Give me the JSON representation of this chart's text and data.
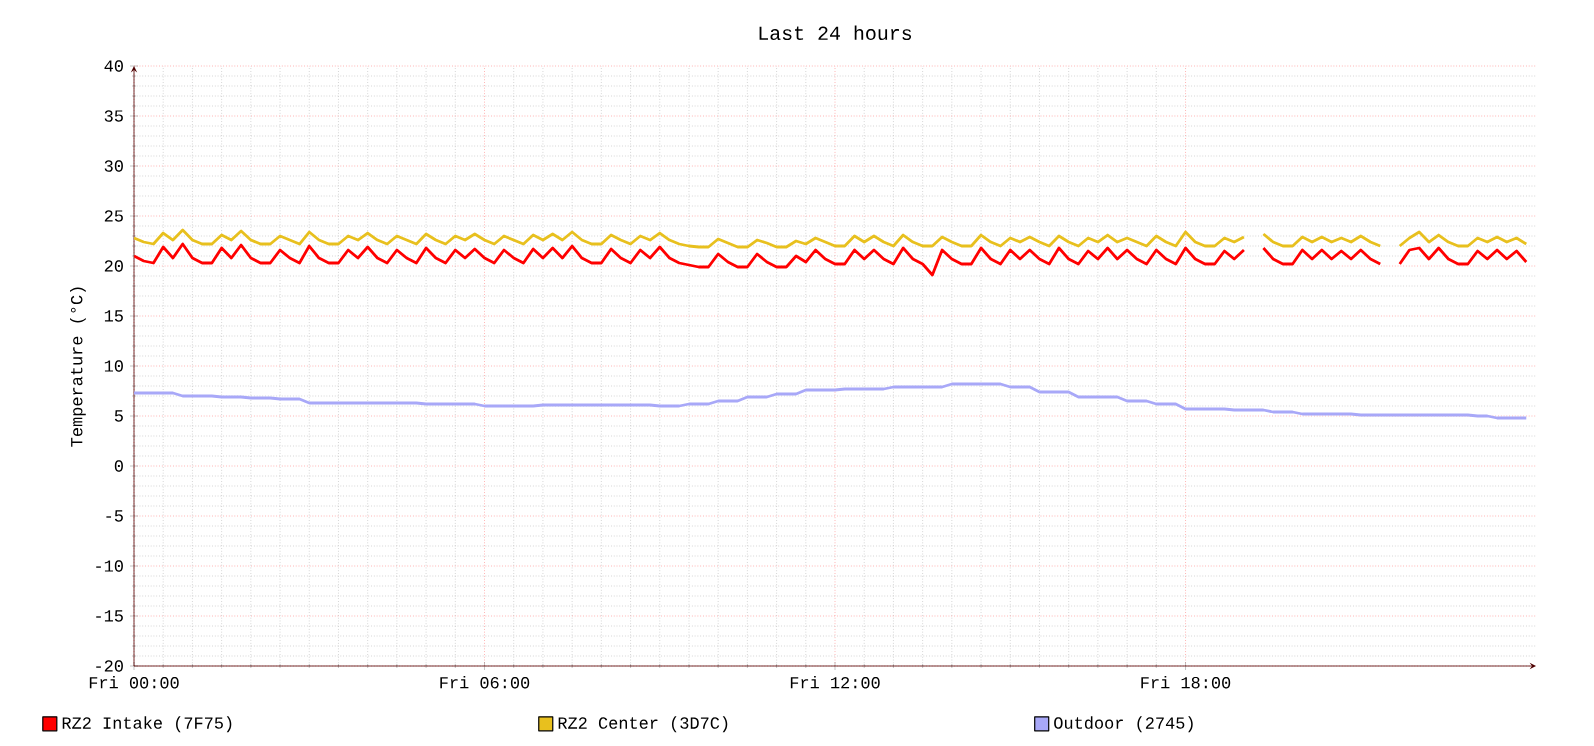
{
  "chart_data": {
    "type": "line",
    "title": "Last 24 hours",
    "ylabel": "Temperature (°C)",
    "categories": [
      "Fri 00:00",
      null,
      null,
      null,
      null,
      null,
      null,
      null,
      null,
      null,
      null,
      null,
      null,
      null,
      null,
      null,
      null,
      null,
      null,
      null,
      null,
      null,
      null,
      null,
      null,
      null,
      null,
      null,
      null,
      null,
      null,
      null,
      null,
      null,
      null,
      null,
      "Fri 06:00",
      null,
      null,
      null,
      null,
      null,
      null,
      null,
      null,
      null,
      null,
      null,
      null,
      null,
      null,
      null,
      null,
      null,
      null,
      null,
      null,
      null,
      null,
      null,
      null,
      null,
      null,
      null,
      null,
      null,
      null,
      null,
      null,
      null,
      null,
      null,
      "Fri 12:00",
      null,
      null,
      null,
      null,
      null,
      null,
      null,
      null,
      null,
      null,
      null,
      null,
      null,
      null,
      null,
      null,
      null,
      null,
      null,
      null,
      null,
      null,
      null,
      null,
      null,
      null,
      null,
      null,
      null,
      null,
      null,
      null,
      null,
      null,
      null,
      "Fri 18:00",
      null,
      null,
      null,
      null,
      null,
      null,
      null,
      null,
      null,
      null,
      null,
      null,
      null,
      null,
      null,
      null,
      null,
      null,
      null,
      null,
      null,
      null,
      null,
      null,
      null,
      null,
      null,
      null,
      null,
      null,
      null,
      null,
      null,
      null,
      null
    ],
    "ylim": [
      -20,
      40
    ],
    "yticks": [
      -20,
      -15,
      -10,
      -5,
      0,
      5,
      10,
      15,
      20,
      25,
      30,
      35,
      40
    ],
    "grid": true,
    "legend": "bottom",
    "series": [
      {
        "name": "RZ2 Intake (7F75)",
        "color": "#ff0000",
        "values": [
          21.0,
          20.5,
          20.3,
          21.9,
          20.8,
          22.2,
          20.8,
          20.3,
          20.3,
          21.8,
          20.8,
          22.1,
          20.8,
          20.3,
          20.3,
          21.6,
          20.8,
          20.3,
          22.0,
          20.8,
          20.3,
          20.3,
          21.6,
          20.8,
          21.9,
          20.8,
          20.3,
          21.6,
          20.8,
          20.3,
          21.8,
          20.8,
          20.3,
          21.6,
          20.8,
          21.7,
          20.8,
          20.3,
          21.6,
          20.8,
          20.3,
          21.7,
          20.8,
          21.8,
          20.8,
          22.0,
          20.8,
          20.3,
          20.3,
          21.7,
          20.8,
          20.3,
          21.6,
          20.8,
          21.9,
          20.8,
          20.3,
          20.1,
          19.9,
          19.9,
          21.2,
          20.4,
          19.9,
          19.9,
          21.2,
          20.4,
          19.9,
          19.9,
          21.0,
          20.4,
          21.6,
          20.7,
          20.2,
          20.2,
          21.6,
          20.7,
          21.6,
          20.7,
          20.2,
          21.8,
          20.7,
          20.2,
          19.1,
          21.6,
          20.7,
          20.2,
          20.2,
          21.8,
          20.7,
          20.2,
          21.6,
          20.7,
          21.6,
          20.7,
          20.2,
          21.8,
          20.7,
          20.2,
          21.5,
          20.7,
          21.8,
          20.7,
          21.6,
          20.7,
          20.2,
          21.6,
          20.7,
          20.2,
          21.8,
          20.7,
          20.2,
          20.2,
          21.5,
          20.7,
          21.6,
          null,
          21.8,
          20.7,
          20.2,
          20.2,
          21.6,
          20.7,
          21.6,
          20.7,
          21.5,
          20.7,
          21.6,
          20.7,
          20.2,
          null,
          20.2,
          21.6,
          21.8,
          20.7,
          21.8,
          20.7,
          20.2,
          20.2,
          21.5,
          20.7,
          21.6,
          20.7,
          21.5,
          20.4
        ]
      },
      {
        "name": "RZ2 Center (3D7C)",
        "color": "#e8c01e",
        "values": [
          22.8,
          22.4,
          22.2,
          23.3,
          22.6,
          23.6,
          22.6,
          22.2,
          22.2,
          23.1,
          22.6,
          23.5,
          22.6,
          22.2,
          22.2,
          23.0,
          22.6,
          22.2,
          23.4,
          22.6,
          22.2,
          22.2,
          23.0,
          22.6,
          23.3,
          22.6,
          22.2,
          23.0,
          22.6,
          22.2,
          23.2,
          22.6,
          22.2,
          23.0,
          22.6,
          23.2,
          22.6,
          22.2,
          23.0,
          22.6,
          22.2,
          23.1,
          22.6,
          23.2,
          22.6,
          23.4,
          22.6,
          22.2,
          22.2,
          23.1,
          22.6,
          22.2,
          23.0,
          22.6,
          23.3,
          22.6,
          22.2,
          22.0,
          21.9,
          21.9,
          22.7,
          22.3,
          21.9,
          21.9,
          22.6,
          22.3,
          21.9,
          21.9,
          22.5,
          22.2,
          22.8,
          22.4,
          22.0,
          22.0,
          23.0,
          22.4,
          23.0,
          22.4,
          22.0,
          23.1,
          22.4,
          22.0,
          22.0,
          22.9,
          22.4,
          22.0,
          22.0,
          23.1,
          22.4,
          22.0,
          22.8,
          22.4,
          22.9,
          22.4,
          22.0,
          23.0,
          22.4,
          22.0,
          22.8,
          22.4,
          23.1,
          22.4,
          22.8,
          22.4,
          22.0,
          23.0,
          22.4,
          22.0,
          23.4,
          22.4,
          22.0,
          22.0,
          22.8,
          22.4,
          22.9,
          null,
          23.2,
          22.4,
          22.0,
          22.0,
          22.9,
          22.4,
          22.9,
          22.4,
          22.8,
          22.4,
          23.0,
          22.4,
          22.0,
          null,
          22.0,
          22.8,
          23.4,
          22.4,
          23.1,
          22.4,
          22.0,
          22.0,
          22.8,
          22.4,
          22.9,
          22.4,
          22.8,
          22.2
        ]
      },
      {
        "name": "Outdoor (2745)",
        "color": "#a8a8f8",
        "values": [
          7.3,
          7.3,
          7.3,
          7.3,
          7.3,
          7.0,
          7.0,
          7.0,
          7.0,
          6.9,
          6.9,
          6.9,
          6.8,
          6.8,
          6.8,
          6.7,
          6.7,
          6.7,
          6.3,
          6.3,
          6.3,
          6.3,
          6.3,
          6.3,
          6.3,
          6.3,
          6.3,
          6.3,
          6.3,
          6.3,
          6.2,
          6.2,
          6.2,
          6.2,
          6.2,
          6.2,
          6.0,
          6.0,
          6.0,
          6.0,
          6.0,
          6.0,
          6.1,
          6.1,
          6.1,
          6.1,
          6.1,
          6.1,
          6.1,
          6.1,
          6.1,
          6.1,
          6.1,
          6.1,
          6.0,
          6.0,
          6.0,
          6.2,
          6.2,
          6.2,
          6.5,
          6.5,
          6.5,
          6.9,
          6.9,
          6.9,
          7.2,
          7.2,
          7.2,
          7.6,
          7.6,
          7.6,
          7.6,
          7.7,
          7.7,
          7.7,
          7.7,
          7.7,
          7.9,
          7.9,
          7.9,
          7.9,
          7.9,
          7.9,
          8.2,
          8.2,
          8.2,
          8.2,
          8.2,
          8.2,
          7.9,
          7.9,
          7.9,
          7.4,
          7.4,
          7.4,
          7.4,
          6.9,
          6.9,
          6.9,
          6.9,
          6.9,
          6.5,
          6.5,
          6.5,
          6.2,
          6.2,
          6.2,
          5.7,
          5.7,
          5.7,
          5.7,
          5.7,
          5.6,
          5.6,
          5.6,
          5.6,
          5.4,
          5.4,
          5.4,
          5.2,
          5.2,
          5.2,
          5.2,
          5.2,
          5.2,
          5.1,
          5.1,
          5.1,
          5.1,
          5.1,
          5.1,
          5.1,
          5.1,
          5.1,
          5.1,
          5.1,
          5.1,
          5.0,
          5.0,
          4.8,
          4.8,
          4.8,
          4.8
        ]
      }
    ]
  }
}
